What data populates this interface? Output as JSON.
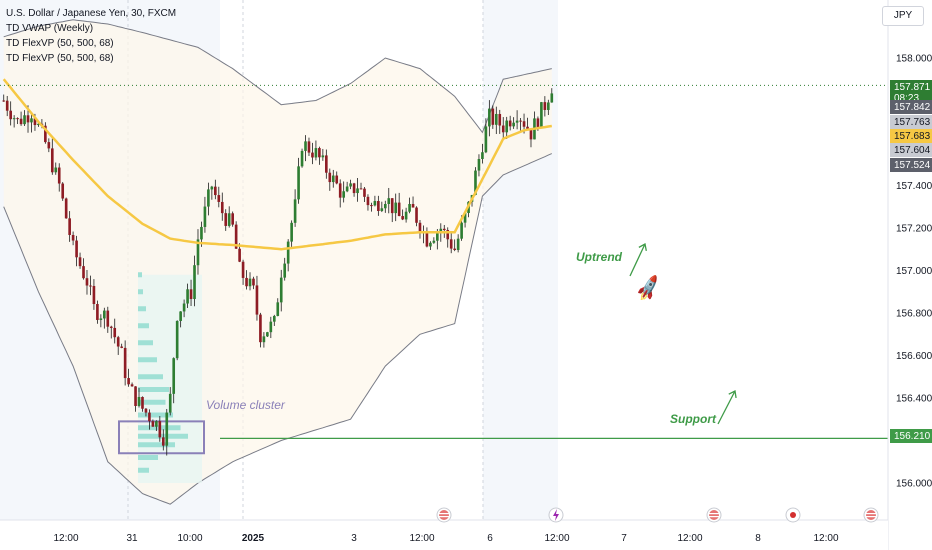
{
  "legend": {
    "symbol_line": "U.S. Dollar / Japanese Yen, 30, FXCM",
    "indicator_1": "TD VWAP (Weekly)",
    "indicator_2": "TD FlexVP (50, 500, 68)",
    "indicator_3": "TD FlexVP (50, 500, 68)"
  },
  "currency_button": "JPY",
  "annotations": {
    "uptrend": "Uptrend",
    "support": "Support",
    "volume_cluster": "Volume cluster",
    "rocket_icon": "rocket-icon"
  },
  "price_badges": {
    "last": "157.871",
    "countdown": "08:23",
    "p1": "157.842",
    "p2": "157.763",
    "p3": "157.683",
    "p4": "157.604",
    "p5": "157.524",
    "support": "156.210"
  },
  "colors": {
    "bull": "#2e7d32",
    "bear": "#8e1c24",
    "vwap": "#f6c844",
    "support_line": "#3f9b48",
    "last_price_badge": "#2e7d32",
    "vwap_badge": "#f6c844",
    "grey_badge": "#c8cbd2",
    "dark_badge": "#5d606b",
    "cluster_box": "#8a80b8",
    "volume_profile": "#9fe0d5"
  },
  "chart_data": {
    "type": "candlestick",
    "symbol": "U.S. Dollar / Japanese Yen",
    "interval": "30",
    "source": "FXCM",
    "ylim": [
      155.95,
      158.2
    ],
    "y_ticks": [
      "158.000",
      "157.400",
      "157.200",
      "157.000",
      "156.800",
      "156.600",
      "156.400",
      "156.000"
    ],
    "x_ticks": [
      "12:00",
      "31",
      "10:00",
      "2025",
      "3",
      "12:00",
      "6",
      "12:00",
      "7",
      "12:00",
      "8",
      "12:00"
    ],
    "support_level": 156.21,
    "last_price": 157.871,
    "vwap_value": 157.683,
    "close_path": [
      [
        0,
        157.8
      ],
      [
        4,
        157.7
      ],
      [
        8,
        157.75
      ],
      [
        12,
        157.6
      ],
      [
        16,
        157.4
      ],
      [
        20,
        157.1
      ],
      [
        24,
        156.95
      ],
      [
        26,
        156.82
      ],
      [
        30,
        156.78
      ],
      [
        34,
        156.6
      ],
      [
        36,
        156.45
      ],
      [
        40,
        156.35
      ],
      [
        44,
        156.28
      ],
      [
        46,
        156.22
      ],
      [
        48,
        156.4
      ],
      [
        50,
        156.8
      ],
      [
        54,
        156.9
      ],
      [
        56,
        157.15
      ],
      [
        60,
        157.4
      ],
      [
        62,
        157.3
      ],
      [
        66,
        157.2
      ],
      [
        68,
        157.0
      ],
      [
        72,
        156.9
      ],
      [
        74,
        156.7
      ],
      [
        78,
        156.75
      ],
      [
        80,
        157.0
      ],
      [
        84,
        157.3
      ],
      [
        86,
        157.6
      ],
      [
        90,
        157.55
      ],
      [
        94,
        157.45
      ],
      [
        98,
        157.35
      ],
      [
        102,
        157.4
      ],
      [
        106,
        157.3
      ],
      [
        110,
        157.35
      ],
      [
        114,
        157.25
      ],
      [
        118,
        157.28
      ],
      [
        122,
        157.15
      ],
      [
        126,
        157.2
      ],
      [
        130,
        157.1
      ],
      [
        134,
        157.3
      ],
      [
        138,
        157.6
      ],
      [
        140,
        157.72
      ],
      [
        144,
        157.68
      ],
      [
        148,
        157.75
      ],
      [
        152,
        157.65
      ],
      [
        156,
        157.78
      ],
      [
        158,
        157.87
      ]
    ],
    "vwap_path": [
      [
        0,
        157.9
      ],
      [
        10,
        157.7
      ],
      [
        20,
        157.52
      ],
      [
        30,
        157.35
      ],
      [
        40,
        157.22
      ],
      [
        48,
        157.15
      ],
      [
        56,
        157.13
      ],
      [
        66,
        157.12
      ],
      [
        80,
        157.1
      ],
      [
        90,
        157.12
      ],
      [
        100,
        157.14
      ],
      [
        110,
        157.17
      ],
      [
        120,
        157.18
      ],
      [
        130,
        157.18
      ],
      [
        138,
        157.43
      ],
      [
        144,
        157.62
      ],
      [
        150,
        157.66
      ],
      [
        158,
        157.68
      ]
    ],
    "upper_band": [
      [
        0,
        158.1
      ],
      [
        10,
        158.15
      ],
      [
        20,
        158.18
      ],
      [
        30,
        158.16
      ],
      [
        40,
        158.12
      ],
      [
        56,
        158.05
      ],
      [
        66,
        157.95
      ],
      [
        80,
        157.78
      ],
      [
        90,
        157.8
      ],
      [
        100,
        157.88
      ],
      [
        110,
        158.0
      ],
      [
        120,
        157.95
      ],
      [
        130,
        157.82
      ],
      [
        138,
        157.65
      ],
      [
        144,
        157.9
      ],
      [
        158,
        157.95
      ]
    ],
    "lower_band": [
      [
        0,
        157.3
      ],
      [
        10,
        156.9
      ],
      [
        20,
        156.55
      ],
      [
        30,
        156.1
      ],
      [
        40,
        155.95
      ],
      [
        48,
        155.9
      ],
      [
        56,
        156.0
      ],
      [
        66,
        156.1
      ],
      [
        80,
        156.2
      ],
      [
        90,
        156.25
      ],
      [
        100,
        156.3
      ],
      [
        110,
        156.55
      ],
      [
        120,
        156.7
      ],
      [
        130,
        156.75
      ],
      [
        138,
        157.35
      ],
      [
        144,
        157.45
      ],
      [
        158,
        157.55
      ]
    ],
    "volume_profile": [
      [
        156.98,
        0.08
      ],
      [
        156.9,
        0.1
      ],
      [
        156.82,
        0.16
      ],
      [
        156.74,
        0.22
      ],
      [
        156.66,
        0.3
      ],
      [
        156.58,
        0.38
      ],
      [
        156.5,
        0.5
      ],
      [
        156.44,
        0.62
      ],
      [
        156.38,
        0.55
      ],
      [
        156.32,
        0.7
      ],
      [
        156.26,
        0.85
      ],
      [
        156.22,
        1.0
      ],
      [
        156.18,
        0.74
      ],
      [
        156.12,
        0.4
      ],
      [
        156.06,
        0.22
      ]
    ],
    "bottom_icons": [
      "us-flag-icon",
      "lightning-icon",
      "us-flag-icon",
      "event-dot-icon",
      "us-flag-icon"
    ]
  }
}
